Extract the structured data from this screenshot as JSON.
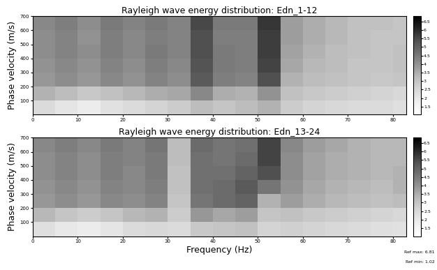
{
  "chart_data": [
    {
      "type": "heatmap",
      "title": "Rayleigh wave energy distribution: Edn_1-12",
      "ylabel": "Phase velocity (m/s)",
      "color": "Greys",
      "x_edges": [
        0,
        5,
        10,
        15,
        20,
        25,
        30,
        35,
        40,
        45,
        50,
        55,
        60,
        65,
        70,
        75,
        80,
        83
      ],
      "y_edges": [
        0,
        100,
        200,
        300,
        400,
        500,
        600,
        700
      ],
      "cells": [
        [
          2.4,
          2.1,
          1.9,
          2.2,
          2.4,
          2.6,
          2.8,
          3.2,
          3.0,
          3.2,
          3.4,
          2.8,
          2.6,
          2.5,
          2.4,
          2.4,
          2.3
        ],
        [
          3.4,
          3.2,
          2.9,
          3.1,
          3.3,
          3.5,
          3.6,
          4.2,
          3.5,
          3.4,
          4.0,
          3.1,
          2.9,
          2.8,
          2.7,
          2.6,
          2.5
        ],
        [
          3.9,
          4.1,
          3.9,
          4.2,
          4.0,
          4.3,
          4.1,
          5.2,
          4.4,
          4.3,
          5.4,
          3.4,
          3.2,
          3.1,
          3.0,
          2.9,
          3.0
        ],
        [
          4.0,
          4.2,
          4.0,
          4.3,
          4.1,
          4.4,
          4.2,
          5.3,
          4.5,
          4.4,
          5.6,
          3.6,
          3.3,
          3.2,
          3.0,
          3.0,
          3.1
        ],
        [
          4.1,
          4.3,
          4.1,
          4.4,
          4.2,
          4.5,
          4.3,
          5.4,
          4.5,
          4.4,
          5.7,
          3.7,
          3.4,
          3.2,
          3.1,
          3.0,
          3.1
        ],
        [
          4.1,
          4.3,
          4.0,
          4.4,
          4.2,
          4.4,
          4.3,
          5.4,
          4.4,
          4.4,
          5.7,
          3.8,
          3.5,
          3.3,
          3.1,
          3.0,
          3.0
        ],
        [
          4.2,
          4.4,
          4.1,
          4.5,
          4.3,
          4.5,
          4.3,
          5.5,
          4.5,
          4.5,
          5.8,
          3.8,
          3.5,
          3.3,
          3.1,
          3.1,
          3.0
        ]
      ],
      "xlim": [
        0,
        83
      ],
      "ylim": [
        0,
        700
      ],
      "xticks": [
        0,
        10,
        20,
        30,
        40,
        50,
        60,
        70,
        80
      ],
      "yticks": [
        100,
        200,
        300,
        400,
        500,
        600,
        700
      ],
      "color_range": [
        1.02,
        6.81
      ],
      "color_ticks": [
        1.5,
        2,
        2.5,
        3,
        3.5,
        4,
        4.5,
        5,
        5.5,
        6,
        6.5
      ]
    },
    {
      "type": "heatmap",
      "title": "Rayleigh wave energy distribution: Edn_13-24",
      "xlabel": "Frequency (Hz)",
      "ylabel": "Phase velocity (m/s)",
      "color": "Greys",
      "x_edges": [
        0,
        5,
        10,
        15,
        20,
        25,
        30,
        35,
        40,
        45,
        50,
        55,
        60,
        65,
        70,
        75,
        80,
        83
      ],
      "y_edges": [
        0,
        100,
        200,
        300,
        400,
        500,
        600,
        700
      ],
      "cells": [
        [
          2.3,
          2.0,
          1.9,
          2.1,
          2.4,
          2.5,
          2.4,
          2.9,
          3.0,
          3.1,
          2.6,
          2.7,
          2.6,
          2.5,
          2.4,
          2.3,
          2.2
        ],
        [
          3.3,
          3.0,
          2.8,
          3.0,
          3.3,
          3.4,
          2.8,
          3.9,
          3.6,
          3.8,
          3.0,
          3.1,
          2.9,
          2.8,
          2.7,
          2.6,
          2.5
        ],
        [
          3.9,
          4.1,
          3.9,
          4.2,
          4.1,
          4.3,
          3.0,
          4.6,
          4.8,
          5.0,
          3.4,
          3.8,
          3.5,
          3.3,
          3.2,
          3.1,
          3.2
        ],
        [
          4.0,
          4.2,
          4.0,
          4.3,
          4.2,
          4.4,
          3.1,
          4.7,
          4.8,
          5.2,
          4.6,
          4.0,
          3.6,
          3.4,
          3.3,
          3.2,
          3.4
        ],
        [
          4.1,
          4.3,
          4.1,
          4.4,
          4.2,
          4.5,
          3.1,
          4.7,
          4.7,
          5.0,
          5.4,
          4.1,
          3.7,
          3.5,
          3.4,
          3.3,
          3.4
        ],
        [
          4.1,
          4.3,
          4.1,
          4.4,
          4.3,
          4.5,
          3.2,
          4.7,
          4.6,
          4.8,
          5.6,
          4.1,
          3.7,
          3.5,
          3.4,
          3.3,
          3.3
        ],
        [
          4.2,
          4.4,
          4.2,
          4.5,
          4.3,
          4.6,
          3.2,
          4.8,
          4.6,
          4.7,
          5.6,
          4.2,
          3.8,
          3.6,
          3.4,
          3.3,
          3.3
        ]
      ],
      "xlim": [
        0,
        83
      ],
      "ylim": [
        0,
        700
      ],
      "xticks": [
        0,
        10,
        20,
        30,
        40,
        50,
        60,
        70,
        80
      ],
      "yticks": [
        100,
        200,
        300,
        400,
        500,
        600,
        700
      ],
      "color_range": [
        1.02,
        6.81
      ],
      "color_ticks": [
        1.5,
        2,
        2.5,
        3,
        3.5,
        4,
        4.5,
        5,
        5.5,
        6,
        6.5
      ],
      "annotations": [
        "Ref max: 6.81",
        "Ref min: 1.02"
      ]
    }
  ]
}
